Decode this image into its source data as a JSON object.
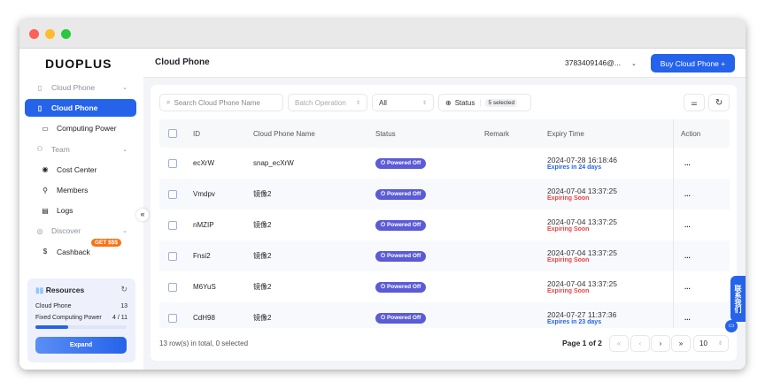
{
  "sidebar": {
    "logo": "DUOPLUS",
    "items": [
      {
        "label": "Cloud Phone",
        "type": "group",
        "icon": "phone-outline-icon"
      },
      {
        "label": "Cloud Phone",
        "type": "active",
        "icon": "phone-icon"
      },
      {
        "label": "Computing Power",
        "type": "sub",
        "icon": "monitor-icon"
      },
      {
        "label": "Team",
        "type": "group",
        "icon": "users-icon"
      },
      {
        "label": "Cost Center",
        "type": "sub",
        "icon": "coin-icon"
      },
      {
        "label": "Members",
        "type": "sub",
        "icon": "member-icon"
      },
      {
        "label": "Logs",
        "type": "sub",
        "icon": "log-icon"
      },
      {
        "label": "Discover",
        "type": "group",
        "icon": "compass-icon"
      },
      {
        "label": "Cashback",
        "type": "sub",
        "icon": "dollar-icon"
      }
    ],
    "cashback_badge": "GET $$$",
    "resources": {
      "title": "Resources",
      "cloud_phone_label": "Cloud Phone",
      "cloud_phone_value": "13",
      "fixed_label": "Fixed Computing Power",
      "fixed_value": "4 / 11",
      "fixed_progress": 0.36,
      "expand": "Expand"
    }
  },
  "header": {
    "title": "Cloud Phone",
    "account": "3783409146@...",
    "buy": "Buy Cloud Phone +"
  },
  "toolbar": {
    "search_placeholder": "Search Cloud Phone Name",
    "batch": "Batch Operation",
    "filter": "All",
    "status": "Status",
    "status_count": "5 selected"
  },
  "table": {
    "columns": [
      "ID",
      "Cloud Phone Name",
      "Status",
      "Remark",
      "Expiry Time",
      "Action"
    ],
    "rows": [
      {
        "id": "ecXrW",
        "name": "snap_ecXrW",
        "status": "Powered Off",
        "expiry": "2024-07-28 16:18:46",
        "note": "Expires in 24 days",
        "note_color": "#2563eb",
        "action": "..."
      },
      {
        "id": "Vmdpv",
        "name": "镜像2",
        "status": "Powered Off",
        "expiry": "2024-07-04 13:37:25",
        "note": "Expiring Soon",
        "note_color": "#ef4444",
        "action": "..."
      },
      {
        "id": "nMZIP",
        "name": "镜像2",
        "status": "Powered Off",
        "expiry": "2024-07-04 13:37:25",
        "note": "Expiring Soon",
        "note_color": "#ef4444",
        "action": "..."
      },
      {
        "id": "Fnsi2",
        "name": "镜像2",
        "status": "Powered Off",
        "expiry": "2024-07-04 13:37:25",
        "note": "Expiring Soon",
        "note_color": "#ef4444",
        "action": "..."
      },
      {
        "id": "M6YuS",
        "name": "镜像2",
        "status": "Powered Off",
        "expiry": "2024-07-04 13:37:25",
        "note": "Expiring Soon",
        "note_color": "#ef4444",
        "action": "..."
      },
      {
        "id": "CdH98",
        "name": "镜像2",
        "status": "Powered Off",
        "expiry": "2024-07-27 11:37:36",
        "note": "Expires in 23 days",
        "note_color": "#2563eb",
        "action": "..."
      }
    ]
  },
  "footer": {
    "summary": "13 row(s) in total, 0 selected",
    "page": "Page 1 of 2",
    "page_size": "10"
  },
  "contact": "联系我们"
}
